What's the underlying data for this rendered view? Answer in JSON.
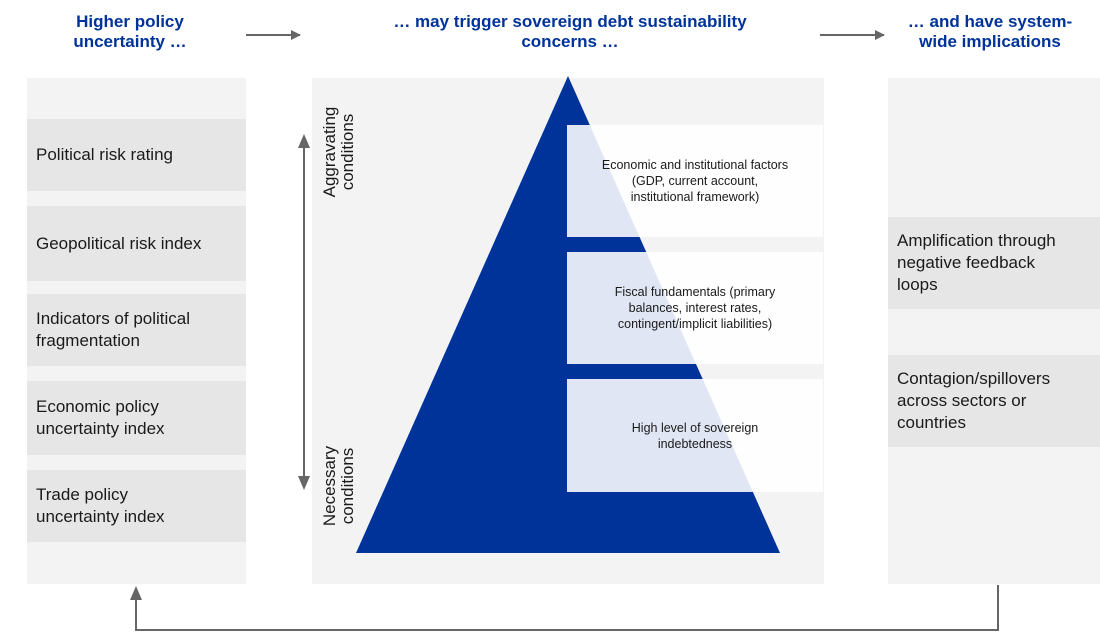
{
  "headers": {
    "left": "Higher policy\nuncertainty …",
    "middle": "… may trigger sovereign debt sustainability\nconcerns …",
    "right": "… and have system-\nwide implications"
  },
  "left_indicators": [
    "Political risk rating",
    "Geopolitical risk index",
    "Indicators of political\nfragmentation",
    "Economic policy\nuncertainty index",
    "Trade policy\nuncertainty index"
  ],
  "pyramid": {
    "axis_top_label": "Aggravating\nconditions",
    "axis_bottom_label": "Necessary\nconditions",
    "layers": [
      "Economic and institutional factors\n(GDP, current account,\ninstitutional framework)",
      "Fiscal fundamentals (primary\nbalances, interest rates,\ncontingent/implicit liabilities)",
      "High level of sovereign\nindebtedness"
    ]
  },
  "implications": [
    "Amplification through\nnegative feedback\nloops",
    "Contagion/spillovers\nacross sectors or\ncountries"
  ],
  "colors": {
    "header_text": "#003399",
    "pyramid": "#003399",
    "arrow": "#666666",
    "panel": "#f3f3f3",
    "box": "#e6e6e6"
  }
}
